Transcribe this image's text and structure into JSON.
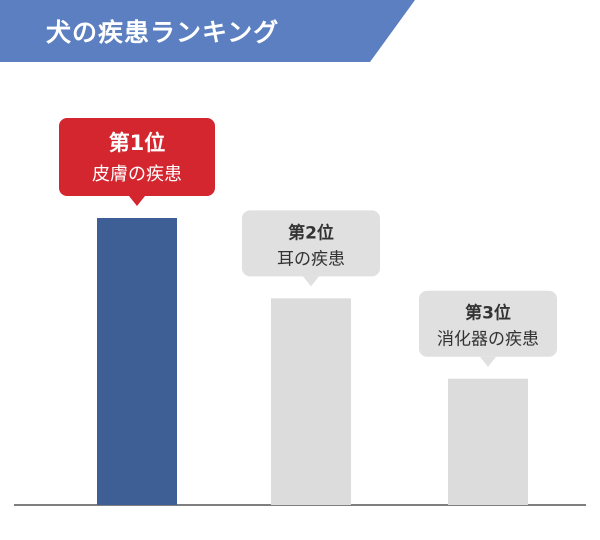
{
  "title": "犬の疾患ランキング",
  "colors": {
    "banner": "#5b7fc0",
    "rank1_bar": "#3e5f95",
    "rank1_callout": "#d4262f",
    "other_bar": "#dcdcdc",
    "other_callout": "#e0e0e0",
    "baseline": "#555555"
  },
  "chart_data": {
    "type": "bar",
    "categories": [
      "第1位 皮膚の疾患",
      "第2位 耳の疾患",
      "第3位 消化器の疾患"
    ],
    "values": [
      100,
      72,
      44
    ],
    "ylim": [
      0,
      100
    ],
    "labels": [
      {
        "rank": "第1位",
        "name": "皮膚の疾患"
      },
      {
        "rank": "第2位",
        "name": "耳の疾患"
      },
      {
        "rank": "第3位",
        "name": "消化器の疾患"
      }
    ],
    "highlight_index": 0,
    "grid": false,
    "legend": "none"
  }
}
